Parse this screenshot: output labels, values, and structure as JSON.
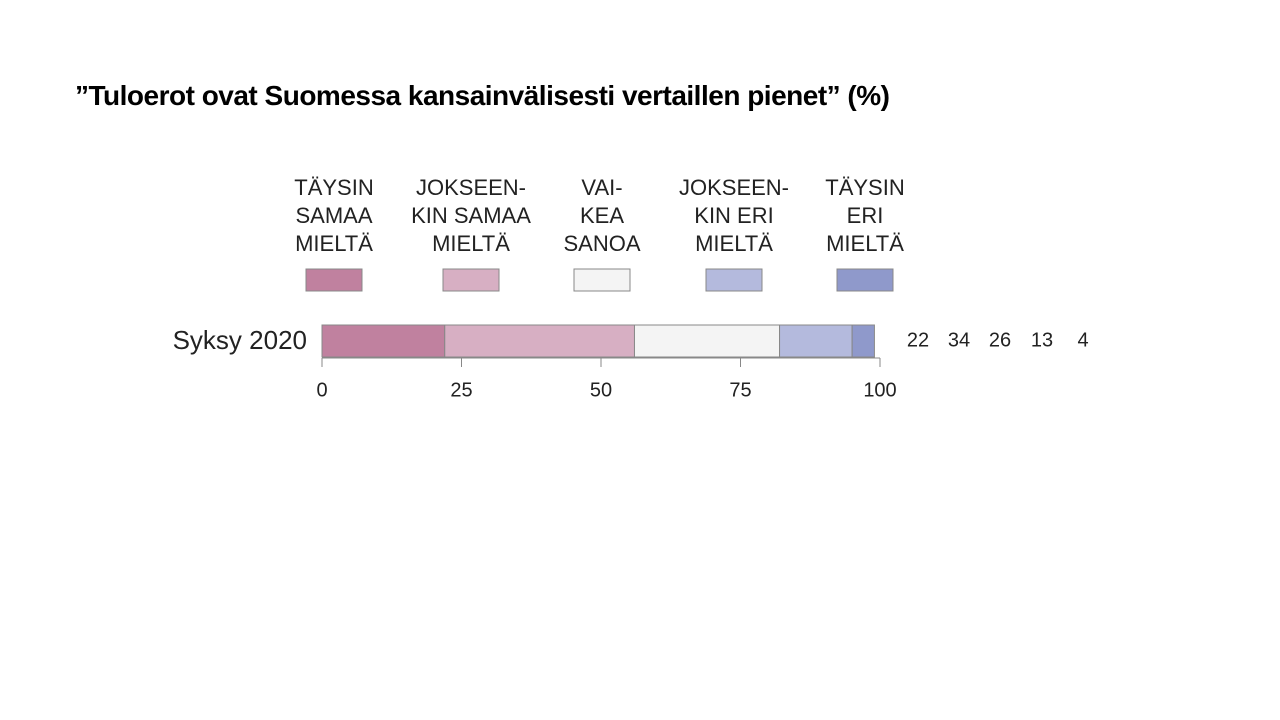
{
  "chart_data": {
    "type": "bar",
    "orientation": "horizontal",
    "stacked": true,
    "title": "”Tuloerot ovat Suomessa kansainvälisesti vertaillen pienet” (%)",
    "categories": [
      "Syksy 2020"
    ],
    "series": [
      {
        "name": "TÄYSIN\nSAMAA\nMIELTÄ",
        "color": "#c0819f",
        "values": [
          22
        ]
      },
      {
        "name": "JOKSEEN-\nKIN SAMAA\nMIELTÄ",
        "color": "#d7afc3",
        "values": [
          34
        ]
      },
      {
        "name": "VAI-\nKEA\nSANOA",
        "color": "#f4f4f4",
        "values": [
          26
        ]
      },
      {
        "name": "JOKSEEN-\nKIN ERI\nMIELTÄ",
        "color": "#b4badd",
        "values": [
          13
        ]
      },
      {
        "name": "TÄYSIN\nERI\nMIELTÄ",
        "color": "#8f99cb",
        "values": [
          4
        ]
      }
    ],
    "xlim": [
      0,
      100
    ],
    "xticks": [
      0,
      25,
      50,
      75,
      100
    ]
  }
}
